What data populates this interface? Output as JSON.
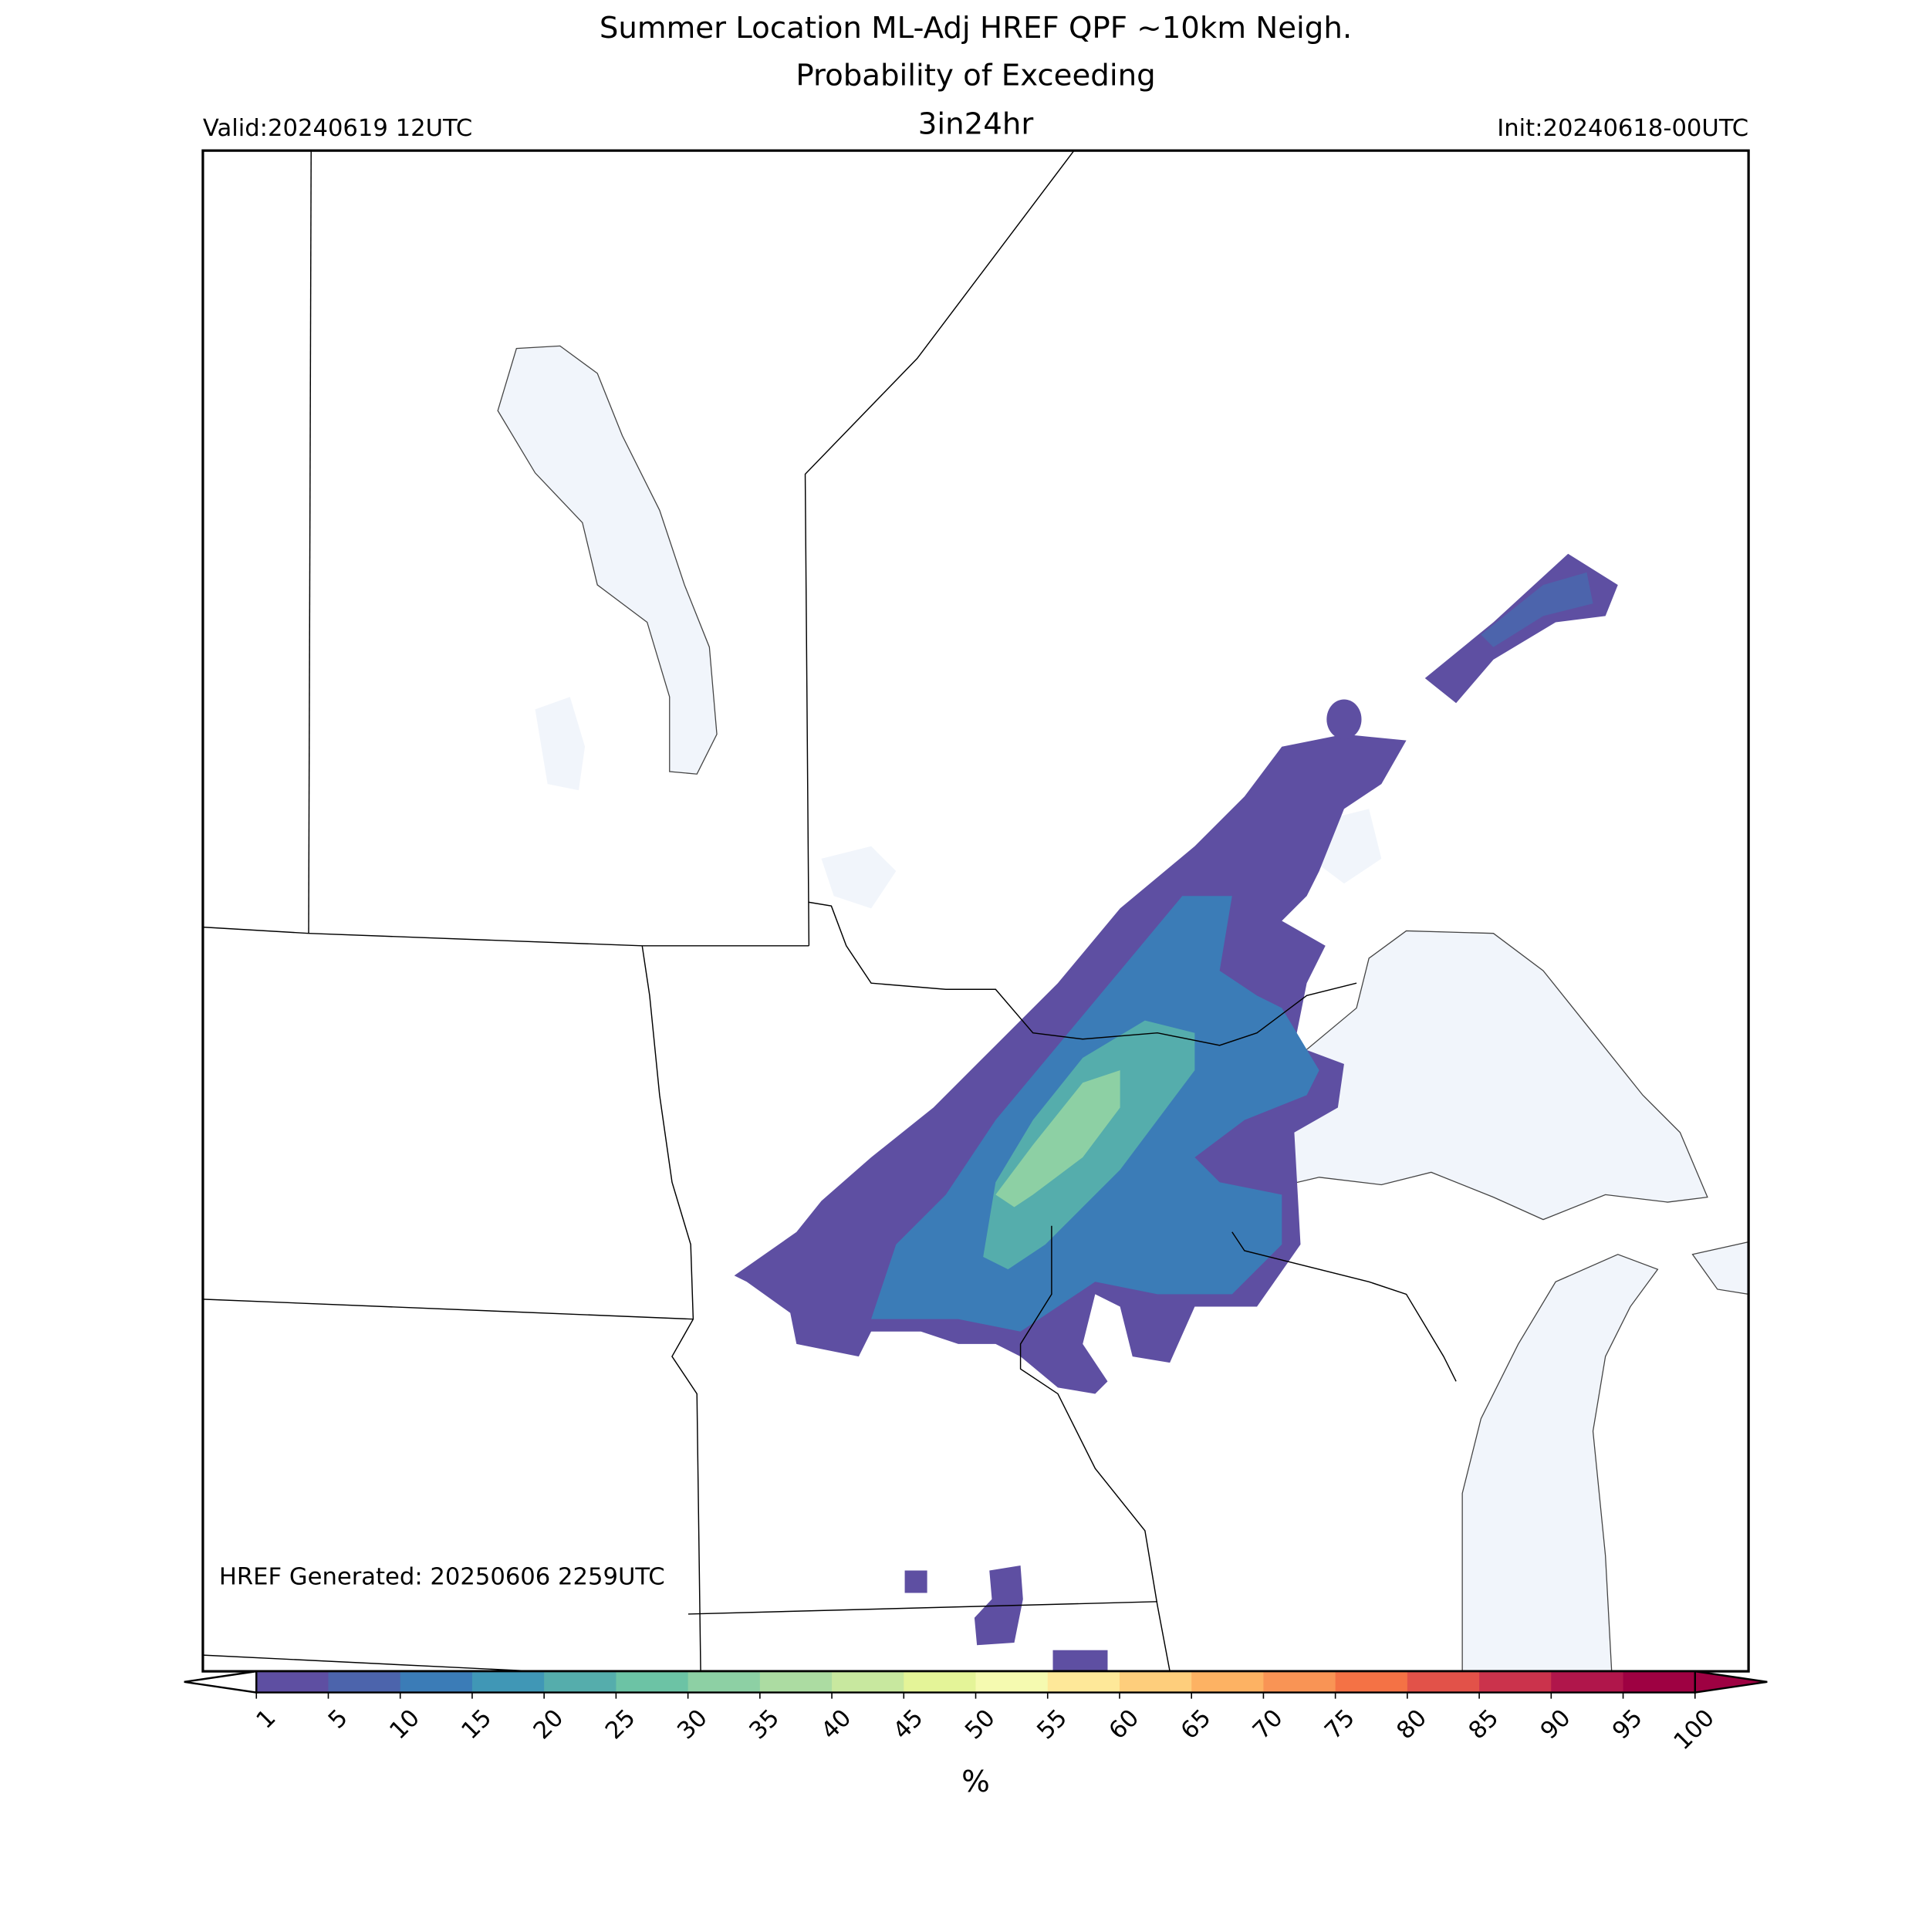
{
  "header": {
    "title_lines": [
      "Summer Location ML-Adj HREF QPF ~10km Neigh.",
      "Probability of Exceeding",
      "3in24hr"
    ],
    "valid": "Valid:20240619 12UTC",
    "init": "Init:20240618-00UTC"
  },
  "footer": {
    "generated": "HREF Generated: 20250606 2259UTC"
  },
  "colorbar": {
    "ticks": [
      1,
      5,
      10,
      15,
      20,
      25,
      30,
      35,
      40,
      45,
      50,
      55,
      60,
      65,
      70,
      75,
      80,
      85,
      90,
      95,
      100
    ],
    "colors": [
      "#5e4fa2",
      "#4c64ac",
      "#3b7cb7",
      "#4097b6",
      "#55adac",
      "#6cc3a5",
      "#8dd0a4",
      "#acdca2",
      "#c8e89f",
      "#e4f498",
      "#f5fab0",
      "#fee899",
      "#fece7c",
      "#fdb263",
      "#f99455",
      "#f47245",
      "#e25249",
      "#cb334c",
      "#b0164b",
      "#9e0142"
    ],
    "label": "%"
  }
}
